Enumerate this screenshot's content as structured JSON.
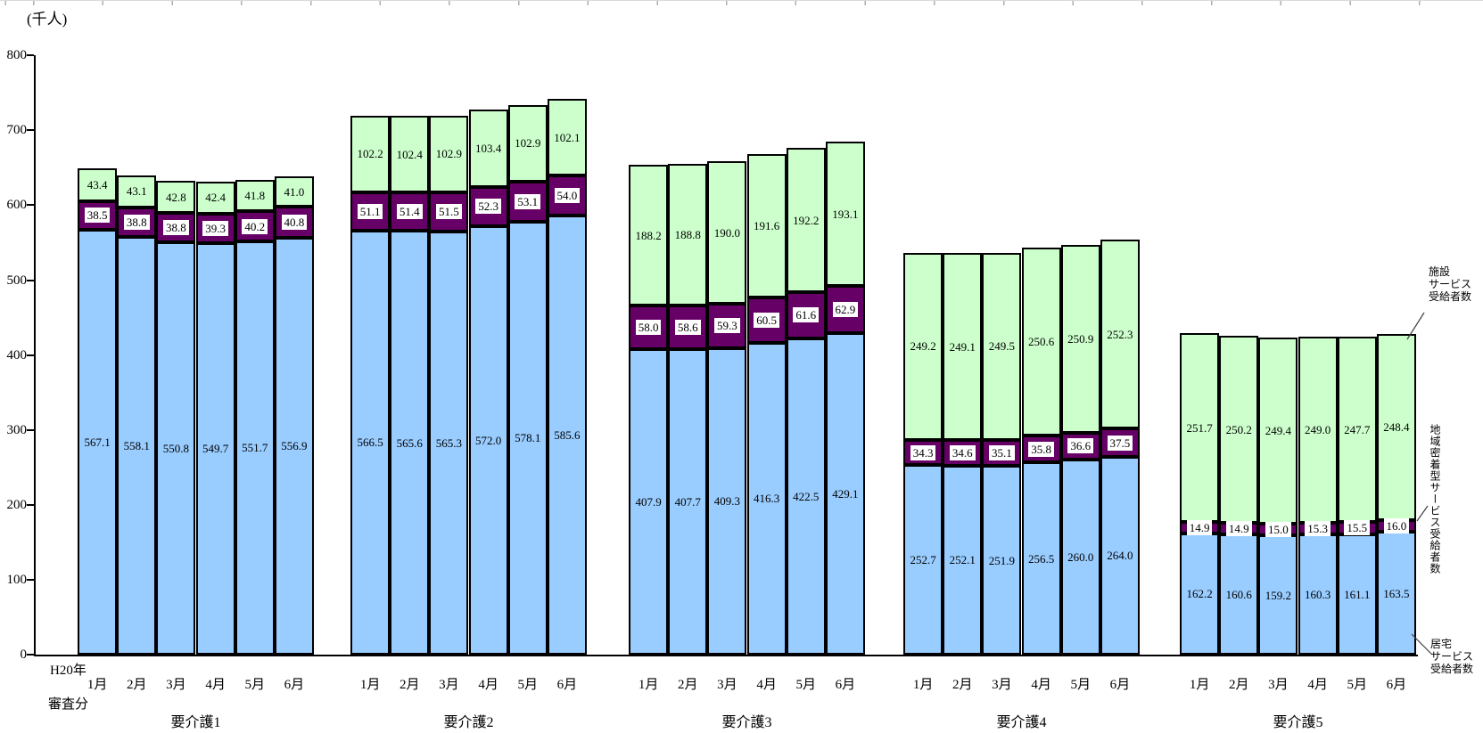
{
  "y_axis": {
    "unit_label": "(千人)",
    "min": 0,
    "max": 800,
    "step": 100
  },
  "x_axis": {
    "year_label": "H20年",
    "assessment_label": "審査分",
    "months": [
      "1月",
      "2月",
      "3月",
      "4月",
      "5月",
      "6月"
    ]
  },
  "annotations": {
    "facility_lines": [
      "施設",
      "サービス",
      "受給者数"
    ],
    "community_text": "地域密着型サービス受給者数",
    "home_lines": [
      "居宅",
      "サービス",
      "受給者数"
    ]
  },
  "colors": {
    "home": "#99CCFF",
    "community": "#660066",
    "facility": "#CCFFCC",
    "border": "#000000"
  },
  "chart_data": {
    "type": "bar",
    "stacked": true,
    "unit": "千人",
    "ylim": [
      0,
      800
    ],
    "y_tick_interval": 100,
    "grid": false,
    "categories": [
      "1月",
      "2月",
      "3月",
      "4月",
      "5月",
      "6月"
    ],
    "series_names": {
      "home": "居宅サービス受給者数",
      "community": "地域密着型サービス受給者数",
      "facility": "施設サービス受給者数"
    },
    "stack_order_bottom_to_top": [
      "home",
      "community",
      "facility"
    ],
    "groups": [
      {
        "label": "要介護1",
        "home": [
          567.1,
          558.1,
          550.8,
          549.7,
          551.7,
          556.9
        ],
        "community": [
          38.5,
          38.8,
          38.8,
          39.3,
          40.2,
          40.8
        ],
        "facility": [
          43.4,
          43.1,
          42.8,
          42.4,
          41.8,
          41.0
        ]
      },
      {
        "label": "要介護2",
        "home": [
          566.5,
          565.6,
          565.3,
          572.0,
          578.1,
          585.6
        ],
        "community": [
          51.1,
          51.4,
          51.5,
          52.3,
          53.1,
          54.0
        ],
        "facility": [
          102.2,
          102.4,
          102.9,
          103.4,
          102.9,
          102.1
        ]
      },
      {
        "label": "要介護3",
        "home": [
          407.9,
          407.7,
          409.3,
          416.3,
          422.5,
          429.1
        ],
        "community": [
          58.0,
          58.6,
          59.3,
          60.5,
          61.6,
          62.9
        ],
        "facility": [
          188.2,
          188.8,
          190.0,
          191.6,
          192.2,
          193.1
        ]
      },
      {
        "label": "要介護4",
        "home": [
          252.7,
          252.1,
          251.9,
          256.5,
          260.0,
          264.0
        ],
        "community": [
          34.3,
          34.6,
          35.1,
          35.8,
          36.6,
          37.5
        ],
        "facility": [
          249.2,
          249.1,
          249.5,
          250.6,
          250.9,
          252.3
        ]
      },
      {
        "label": "要介護5",
        "home": [
          162.2,
          160.6,
          159.2,
          160.3,
          161.1,
          163.5
        ],
        "community": [
          14.9,
          14.9,
          15.0,
          15.3,
          15.5,
          16.0
        ],
        "facility": [
          251.7,
          250.2,
          249.4,
          249.0,
          247.7,
          248.4
        ]
      }
    ]
  }
}
